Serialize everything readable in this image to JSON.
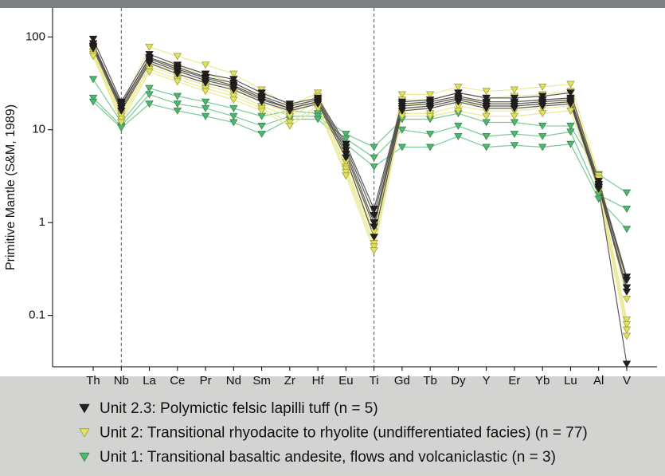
{
  "chart_data": {
    "type": "line",
    "y_label": "Primitive Mantle (S&M, 1989)",
    "categories": [
      "Th",
      "Nb",
      "La",
      "Ce",
      "Pr",
      "Nd",
      "Sm",
      "Zr",
      "Hf",
      "Eu",
      "Ti",
      "Gd",
      "Tb",
      "Dy",
      "Y",
      "Er",
      "Yb",
      "Lu",
      "Al",
      "V"
    ],
    "y_scale": "log",
    "ylim": [
      0.028,
      205
    ],
    "yticks": [
      100,
      10,
      1,
      0.1
    ],
    "dashed_categories": [
      "Nb",
      "Ti"
    ],
    "marker": "triangle-down",
    "series": [
      {
        "name": "Unit 2.3: Polymictic felsic lapilli tuff (n = 5)",
        "color": "#231f20",
        "line_color": "#4a4647",
        "values": [
          [
            95,
            20,
            65,
            50,
            40,
            35,
            25,
            19,
            22,
            7,
            1.4,
            20,
            21,
            25,
            22,
            22,
            23,
            25,
            2.8,
            0.26
          ],
          [
            85,
            18,
            60,
            47,
            37,
            32,
            23,
            18,
            21,
            6.5,
            1.2,
            19,
            20,
            23,
            20,
            20,
            21,
            22,
            2.6,
            0.24
          ],
          [
            80,
            17,
            55,
            43,
            34,
            29,
            21,
            17,
            20,
            6,
            1.0,
            18,
            19,
            22,
            19,
            19,
            20,
            21,
            2.5,
            0.2
          ],
          [
            78,
            19,
            58,
            45,
            36,
            30,
            22,
            17,
            20,
            5.5,
            0.9,
            17,
            18,
            21,
            18,
            18,
            19,
            20,
            2.4,
            0.18
          ],
          [
            75,
            16,
            52,
            40,
            32,
            27,
            20,
            16,
            19,
            5,
            0.7,
            16,
            17,
            20,
            17,
            17,
            18,
            19,
            2.3,
            0.03
          ]
        ]
      },
      {
        "name": "Unit 2: Transitional rhyodacite to rhyolite (undifferentiated facies) (n = 77)",
        "color": "#e2e25c",
        "line_color": "#e8e88c",
        "values": [
          [
            80,
            18,
            78,
            62,
            50,
            40,
            27,
            18,
            25,
            5,
            0.9,
            24,
            24,
            29,
            26,
            27,
            29,
            31,
            3.2,
            0.2
          ],
          [
            75,
            16,
            60,
            48,
            40,
            32,
            22,
            16,
            23,
            4.5,
            0.8,
            21,
            21,
            25,
            22,
            23,
            24,
            26,
            3,
            0.15
          ],
          [
            70,
            15,
            52,
            42,
            34,
            28,
            20,
            15,
            21,
            4,
            0.7,
            19,
            19,
            22,
            20,
            20,
            21,
            22,
            2.8,
            0.09
          ],
          [
            68,
            14,
            48,
            38,
            30,
            25,
            18,
            14,
            20,
            3.8,
            0.6,
            17,
            17,
            20,
            18,
            18,
            19,
            20,
            2.6,
            0.08
          ],
          [
            65,
            13,
            45,
            35,
            28,
            23,
            17,
            12,
            18,
            3.5,
            0.55,
            15,
            15,
            18,
            16,
            16,
            17,
            18,
            2.4,
            0.07
          ],
          [
            62,
            12,
            42,
            33,
            26,
            21,
            16,
            11,
            17,
            3.2,
            0.5,
            14,
            14,
            16,
            14,
            14,
            15,
            16,
            2.2,
            0.06
          ]
        ]
      },
      {
        "name": "Unit 1: Transitional basaltic andesite, flows and volcaniclastic (n = 3)",
        "color": "#4fb870",
        "line_color": "#6cc58a",
        "values": [
          [
            35,
            12,
            28,
            23,
            20,
            17,
            14,
            16,
            15,
            9,
            6.5,
            13,
            13,
            15,
            12,
            12,
            11,
            11,
            3.3,
            2.1
          ],
          [
            22,
            11,
            24,
            19,
            17,
            14,
            11,
            14,
            14,
            8,
            5,
            10,
            9,
            11,
            8.5,
            9,
            8.5,
            9.5,
            2,
            1.4
          ],
          [
            20,
            10.5,
            19,
            16,
            14,
            12,
            9,
            13,
            13,
            7,
            4,
            6.5,
            6.5,
            8.5,
            6.5,
            6.8,
            6.5,
            7,
            1.8,
            0.85
          ]
        ]
      }
    ]
  }
}
